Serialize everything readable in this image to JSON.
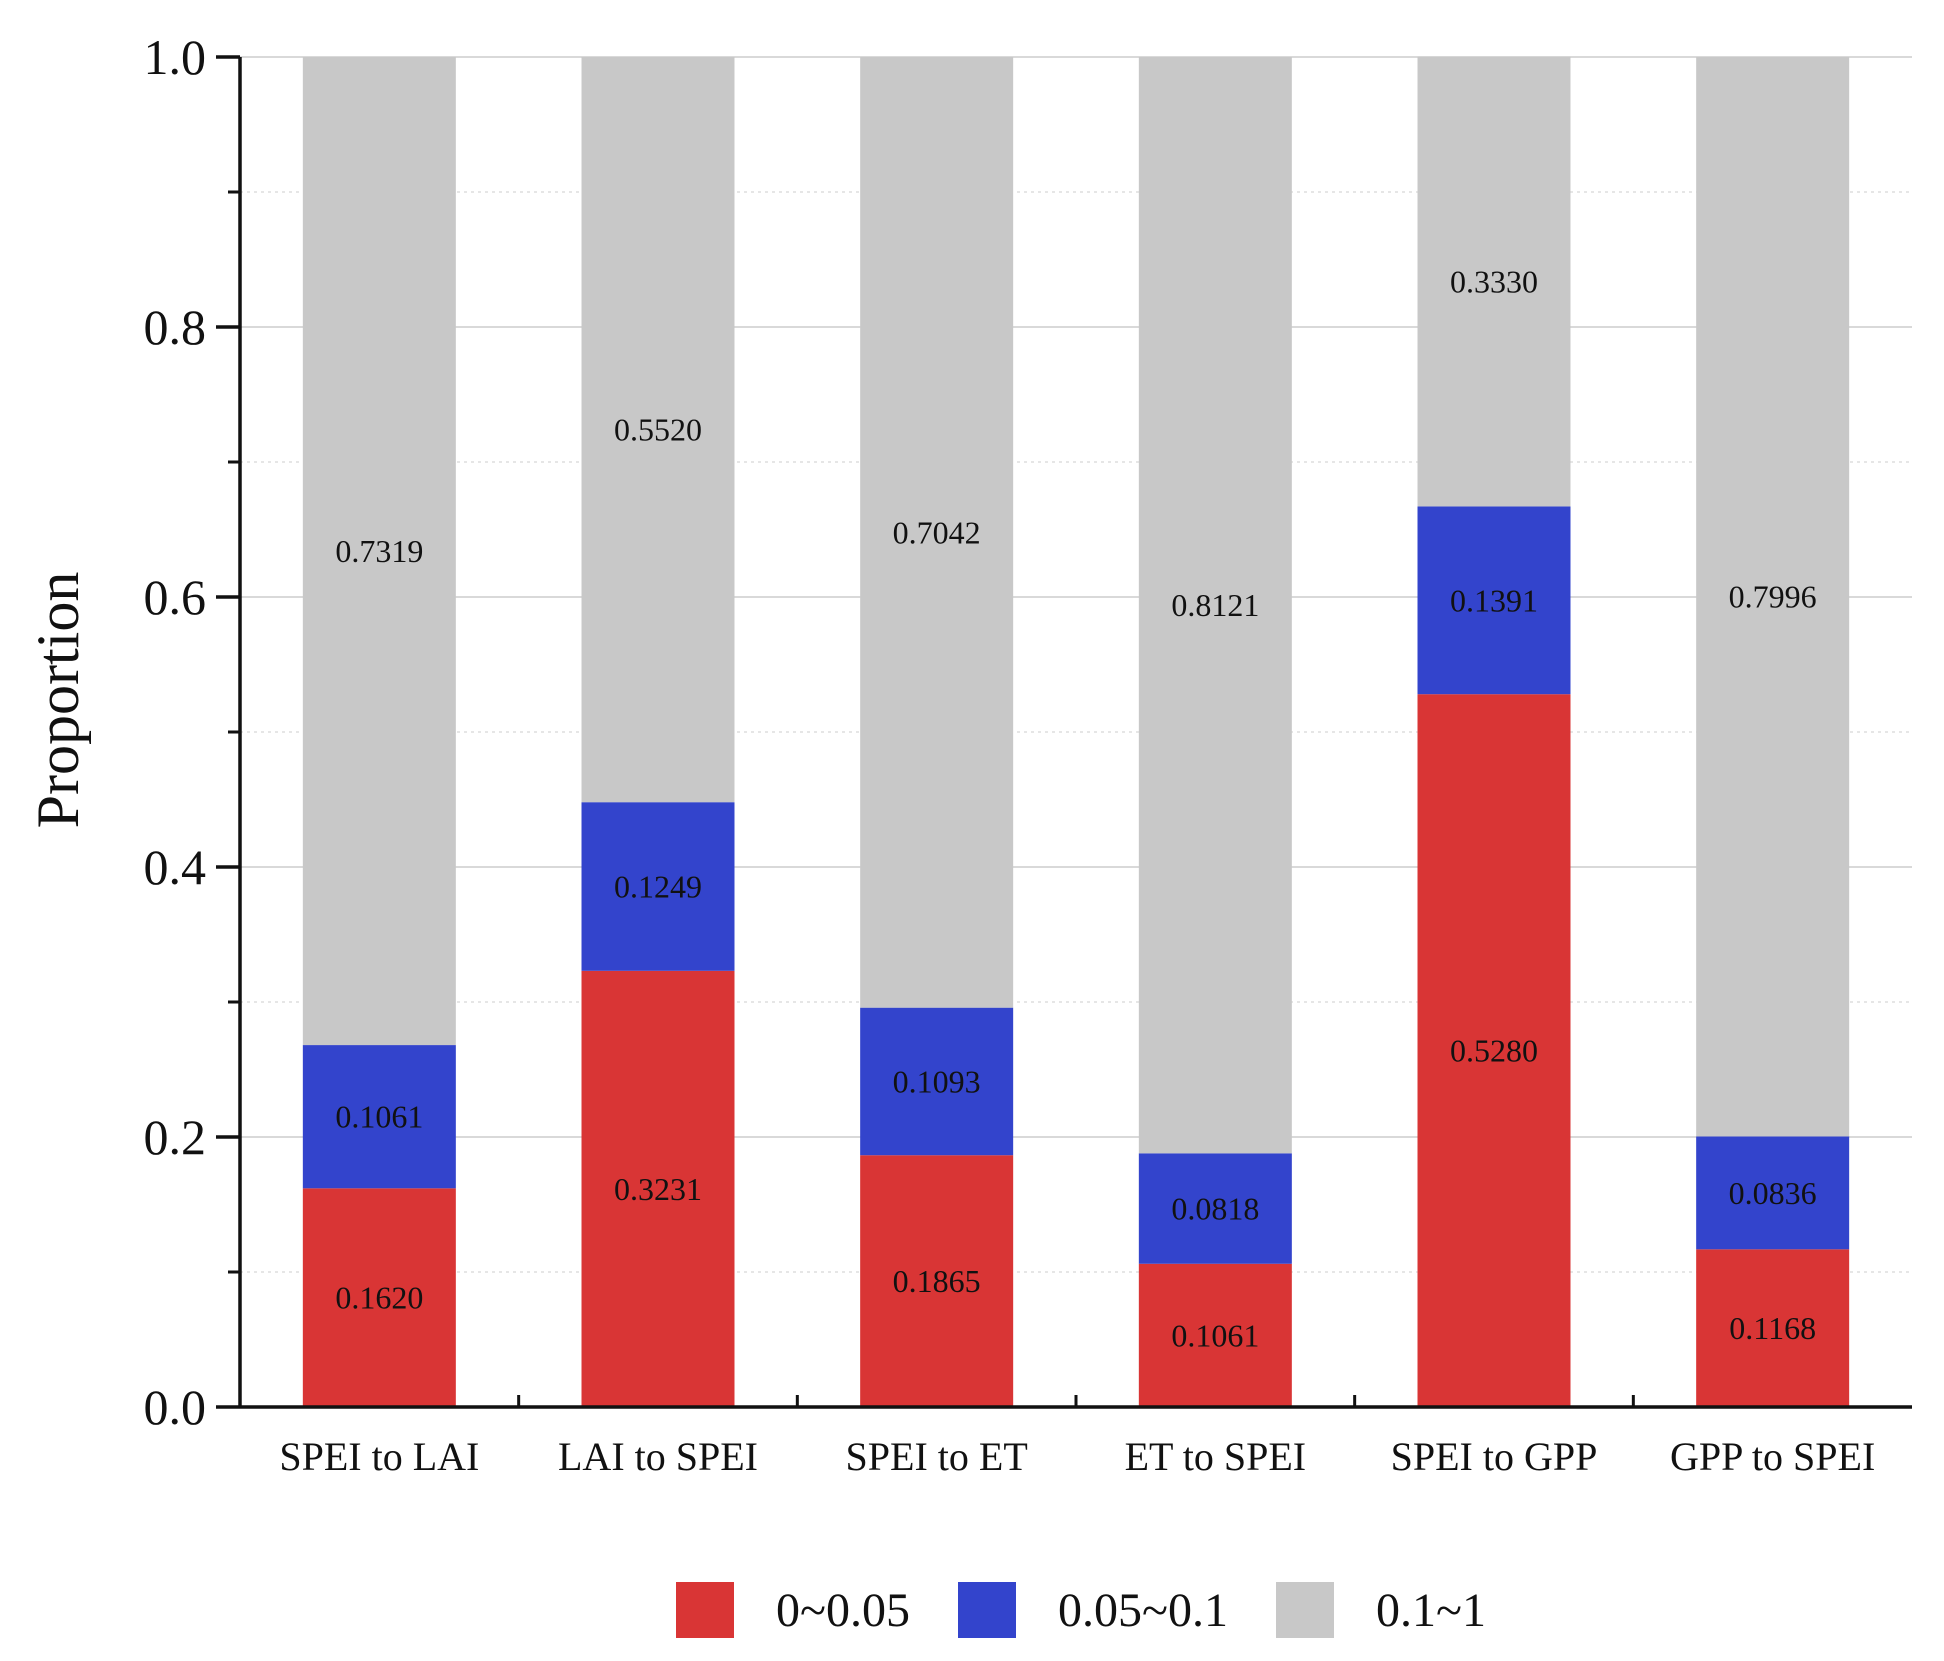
{
  "chart_data": {
    "type": "bar",
    "stacked": true,
    "title": "",
    "xlabel": "",
    "ylabel": "Proportion",
    "ylim": [
      0,
      1
    ],
    "yticks": [
      "0.0",
      "0.2",
      "0.4",
      "0.6",
      "0.8",
      "1.0"
    ],
    "grid": true,
    "legend_position": "bottom",
    "categories": [
      "SPEI to LAI",
      "LAI to SPEI",
      "SPEI to ET",
      "ET to SPEI",
      "SPEI to GPP",
      "GPP to SPEI"
    ],
    "series": [
      {
        "name": "0~0.05",
        "color": "#d93535",
        "values": [
          0.162,
          0.3231,
          0.1865,
          0.1061,
          0.528,
          0.1168
        ],
        "labels": [
          "0.1620",
          "0.3231",
          "0.1865",
          "0.1061",
          "0.5280",
          "0.1168"
        ]
      },
      {
        "name": "0.05~0.1",
        "color": "#3344cc",
        "values": [
          0.1061,
          0.1249,
          0.1093,
          0.0818,
          0.1391,
          0.0836
        ],
        "labels": [
          "0.1061",
          "0.1249",
          "0.1093",
          "0.0818",
          "0.1391",
          "0.0836"
        ]
      },
      {
        "name": "0.1~1",
        "color": "#c8c8c8",
        "values": [
          0.7319,
          0.552,
          0.7042,
          0.8121,
          0.333,
          0.7996
        ],
        "labels": [
          "0.7319",
          "0.5520",
          "0.7042",
          "0.8121",
          "0.3330",
          "0.7996"
        ]
      }
    ]
  }
}
